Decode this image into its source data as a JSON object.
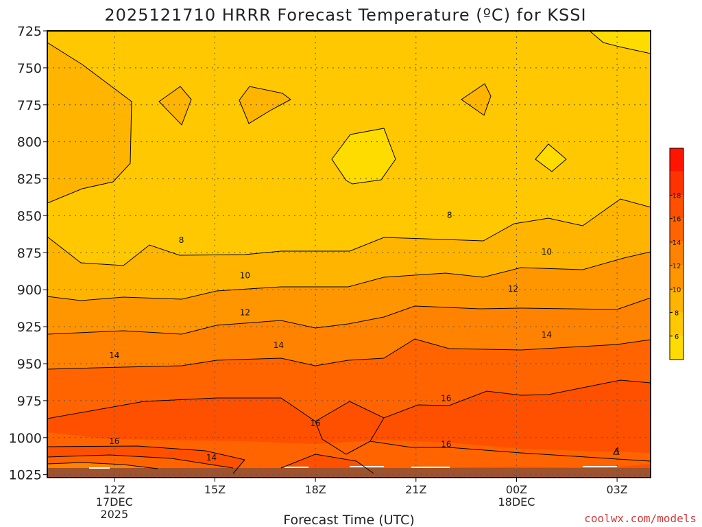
{
  "chart_data": {
    "type": "contour",
    "title": "2025121710 HRRR Forecast Temperature (ºC) for KSSI",
    "xlabel": "Forecast Time (UTC)",
    "ylabel": "",
    "x_ticks": [
      {
        "label": "12Z",
        "sub": [
          "17DEC",
          "2025"
        ]
      },
      {
        "label": "15Z",
        "sub": []
      },
      {
        "label": "18Z",
        "sub": []
      },
      {
        "label": "21Z",
        "sub": []
      },
      {
        "label": "00Z",
        "sub": [
          "18DEC"
        ]
      },
      {
        "label": "03Z",
        "sub": []
      }
    ],
    "x_hours": [
      12,
      15,
      18,
      21,
      24,
      27
    ],
    "xlim": [
      10.0,
      28.0
    ],
    "y_ticks": [
      725,
      750,
      775,
      800,
      825,
      850,
      875,
      900,
      925,
      950,
      975,
      1000,
      1025
    ],
    "ylim": [
      1027,
      725
    ],
    "colorbar": {
      "levels": [
        4,
        6,
        8,
        10,
        12,
        14,
        16,
        18,
        20
      ],
      "labels": [
        "6",
        "8",
        "10",
        "12",
        "14",
        "16",
        "18"
      ],
      "colors": [
        "#ffdc00",
        "#ffc800",
        "#ffb400",
        "#ff9600",
        "#ff8200",
        "#ff6400",
        "#ff5000",
        "#ff3200",
        "#ff1400"
      ]
    },
    "contour_labels": [
      {
        "text": "8",
        "x": 14.0,
        "p": 866
      },
      {
        "text": "8",
        "x": 22.0,
        "p": 849
      },
      {
        "text": "10",
        "x": 15.9,
        "p": 890
      },
      {
        "text": "10",
        "x": 24.9,
        "p": 874
      },
      {
        "text": "12",
        "x": 15.9,
        "p": 915
      },
      {
        "text": "12",
        "x": 23.9,
        "p": 899
      },
      {
        "text": "14",
        "x": 12.0,
        "p": 944
      },
      {
        "text": "14",
        "x": 16.9,
        "p": 937
      },
      {
        "text": "14",
        "x": 24.9,
        "p": 930
      },
      {
        "text": "16",
        "x": 12.0,
        "p": 1002
      },
      {
        "text": "16",
        "x": 18.0,
        "p": 990
      },
      {
        "text": "16",
        "x": 21.9,
        "p": 973
      },
      {
        "text": "16",
        "x": 21.9,
        "p": 1004
      },
      {
        "text": "14",
        "x": 14.9,
        "p": 1013
      },
      {
        "text": "4",
        "x": 27.0,
        "p": 1009
      }
    ],
    "watermark": "coolwx.com/models"
  }
}
